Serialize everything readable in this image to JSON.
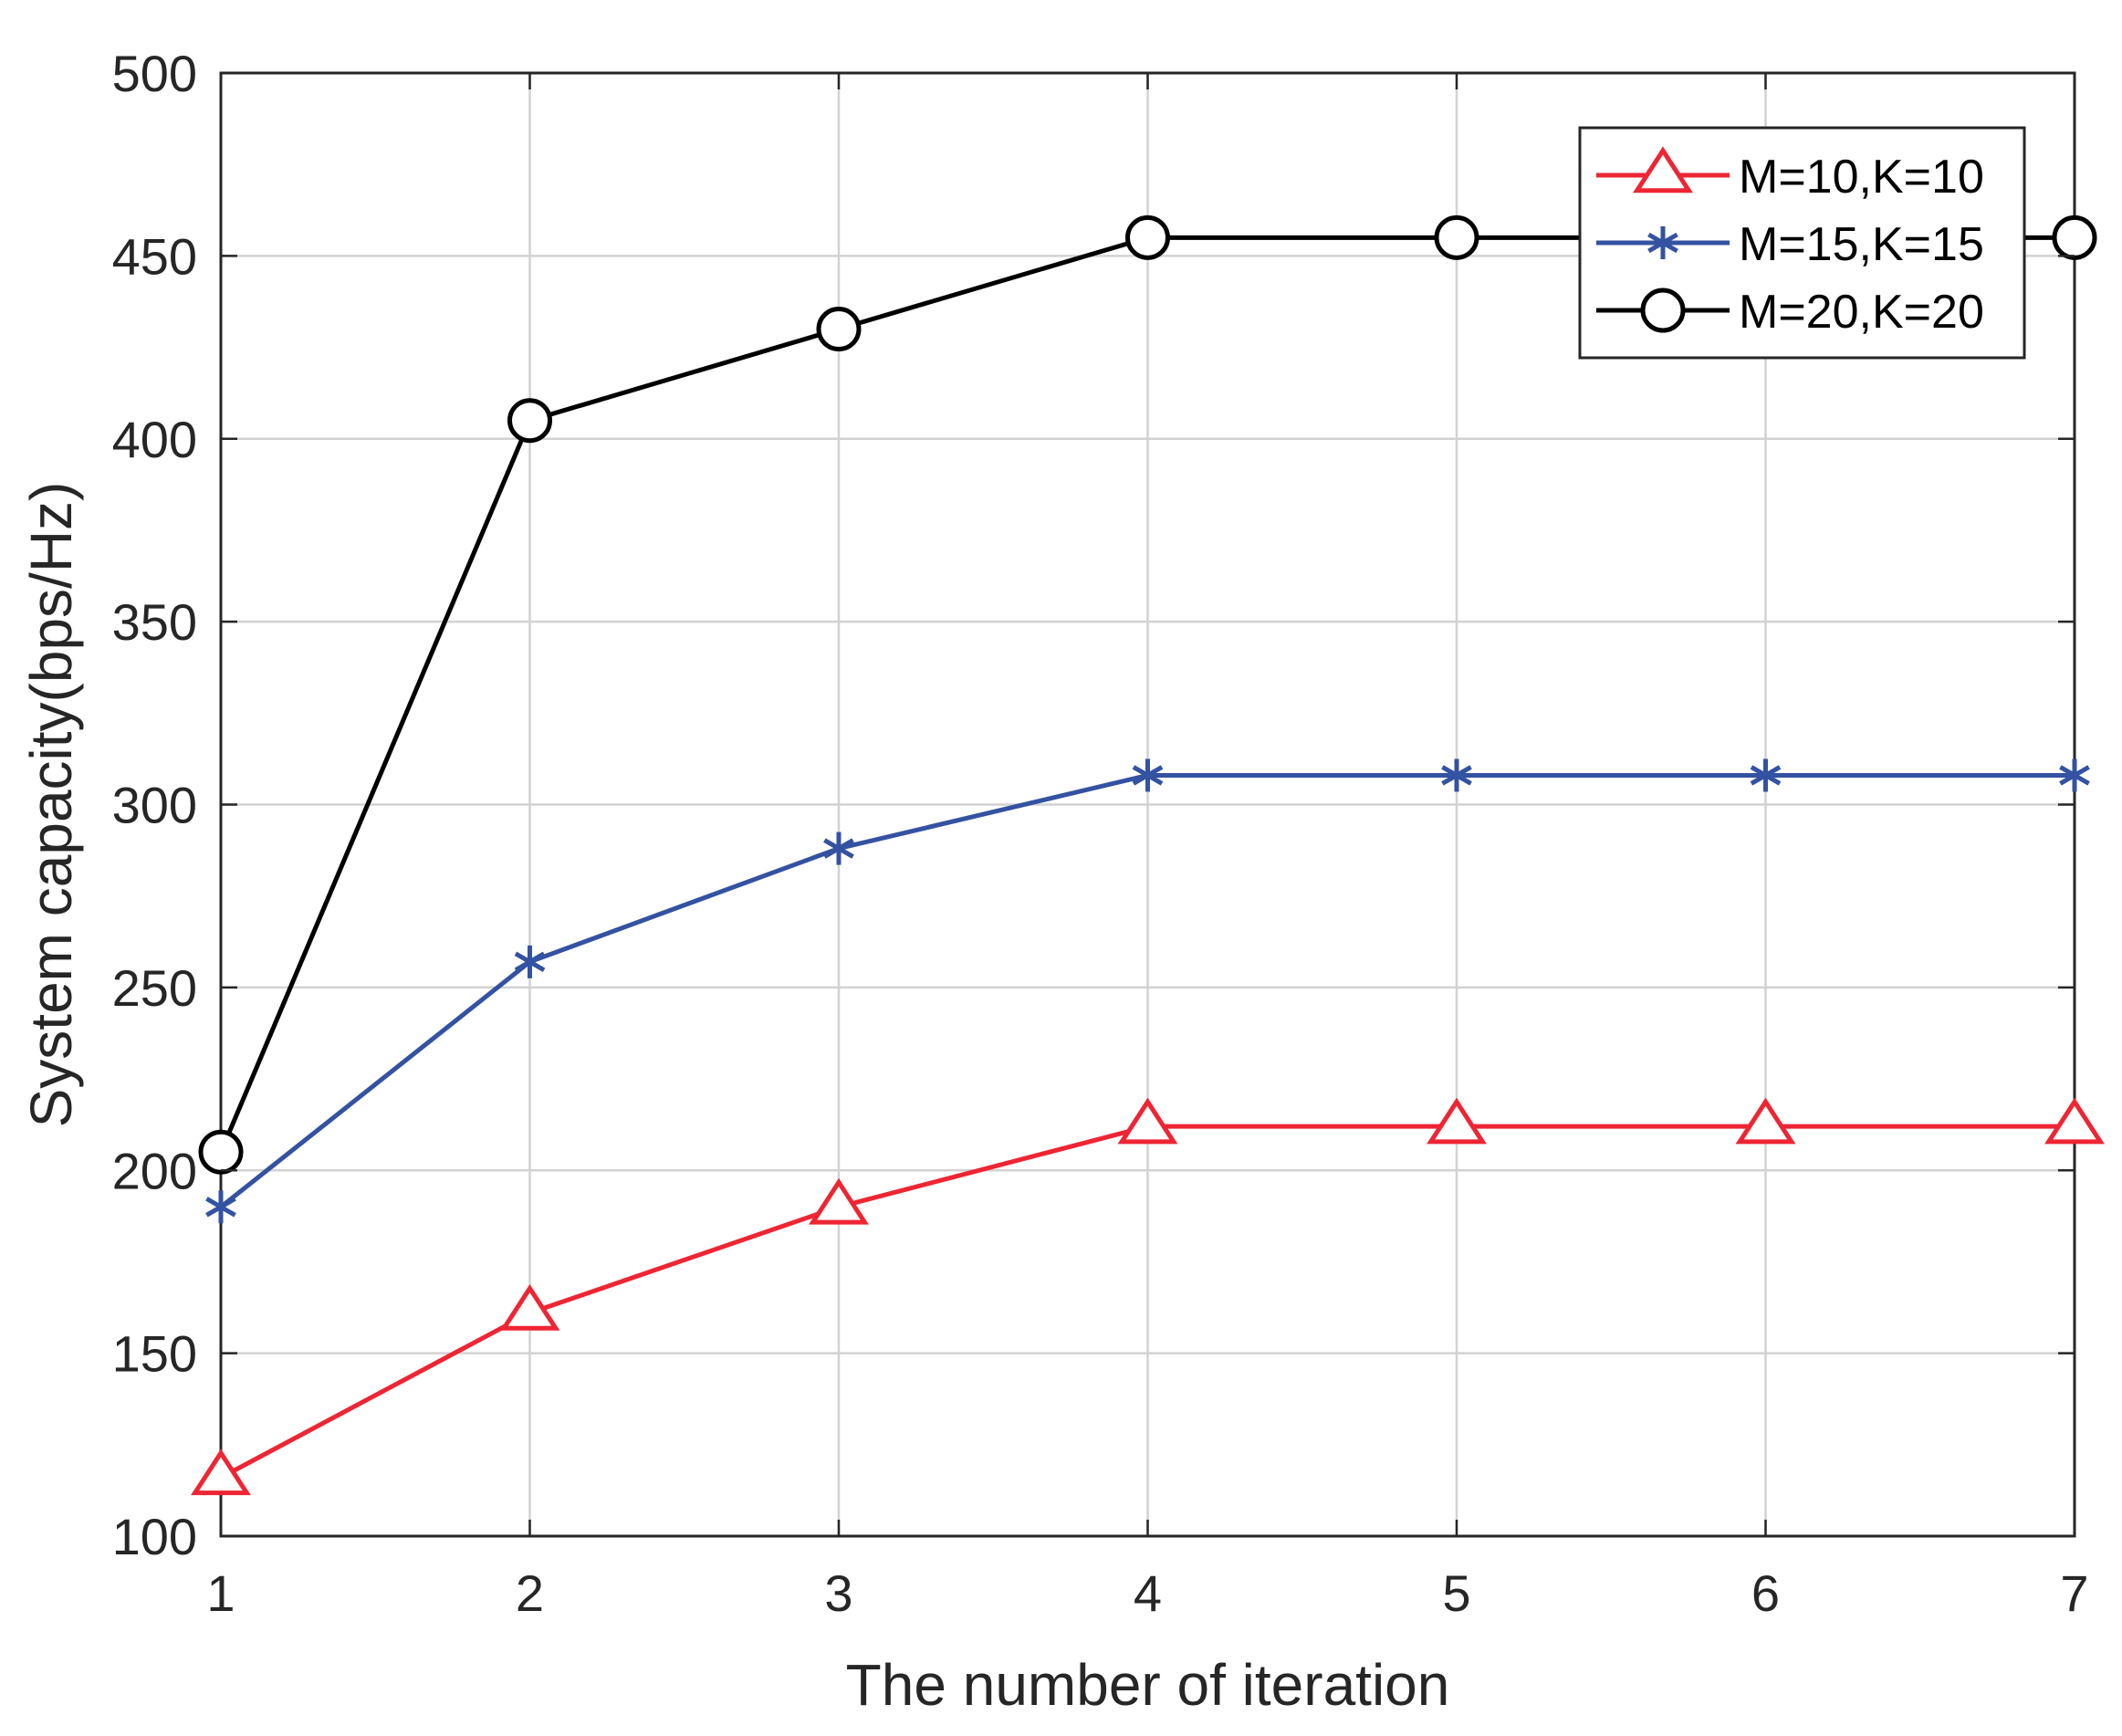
{
  "chart_data": {
    "type": "line",
    "title": "",
    "xlabel": "The number of iteration",
    "ylabel": "System capacity(bps/Hz)",
    "x": [
      1,
      2,
      3,
      4,
      5,
      6,
      7
    ],
    "xlim": [
      1,
      7
    ],
    "ylim": [
      100,
      500
    ],
    "xticks": [
      "1",
      "2",
      "3",
      "4",
      "5",
      "6",
      "7"
    ],
    "yticks": [
      "100",
      "150",
      "200",
      "250",
      "300",
      "350",
      "400",
      "450",
      "500"
    ],
    "grid": true,
    "legend_position": "top-right",
    "series": [
      {
        "name": "M=10,K=10",
        "color": "#EE2533",
        "marker": "triangle",
        "values": [
          116,
          161,
          190,
          212,
          212,
          212,
          212
        ]
      },
      {
        "name": "M=15,K=15",
        "color": "#3452A2",
        "marker": "asterisk",
        "values": [
          190,
          257,
          288,
          308,
          308,
          308,
          308
        ]
      },
      {
        "name": "M=20,K=20",
        "color": "#000000",
        "marker": "circle",
        "values": [
          205,
          405,
          430,
          455,
          455,
          455,
          455
        ]
      }
    ]
  }
}
